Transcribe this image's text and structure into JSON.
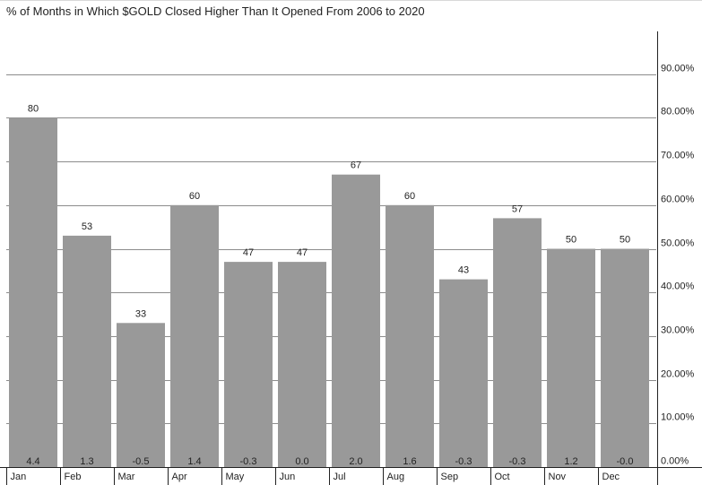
{
  "chart_data": {
    "type": "bar",
    "title": "% of Months in Which $GOLD Closed Higher Than It Opened From 2006 to 2020",
    "categories": [
      "Jan",
      "Feb",
      "Mar",
      "Apr",
      "May",
      "Jun",
      "Jul",
      "Aug",
      "Sep",
      "Oct",
      "Nov",
      "Dec"
    ],
    "values": [
      80,
      53,
      33,
      60,
      47,
      47,
      67,
      60,
      43,
      57,
      50,
      50
    ],
    "bar_labels": [
      "80",
      "53",
      "33",
      "60",
      "47",
      "47",
      "67",
      "60",
      "43",
      "57",
      "50",
      "50"
    ],
    "avg_return_labels": [
      "4.4",
      "1.3",
      "-0.5",
      "1.4",
      "-0.3",
      "0.0",
      "2.0",
      "1.6",
      "-0.3",
      "-0.3",
      "1.2",
      "-0.0"
    ],
    "y_ticks": [
      {
        "value": 0,
        "label": "0.00%"
      },
      {
        "value": 10,
        "label": "10.00%"
      },
      {
        "value": 20,
        "label": "20.00%"
      },
      {
        "value": 30,
        "label": "30.00%"
      },
      {
        "value": 40,
        "label": "40.00%"
      },
      {
        "value": 50,
        "label": "50.00%"
      },
      {
        "value": 60,
        "label": "60.00%"
      },
      {
        "value": 70,
        "label": "70.00%"
      },
      {
        "value": 80,
        "label": "80.00%"
      },
      {
        "value": 90,
        "label": "90.00%"
      }
    ],
    "ylim": [
      0,
      100
    ],
    "y_axis_side": "right",
    "grid": true,
    "colors": {
      "bar": "#999999",
      "grid": "#8c8c8c",
      "axis": "#222222"
    }
  }
}
